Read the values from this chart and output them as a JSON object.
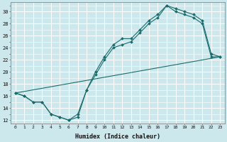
{
  "xlabel": "Humidex (Indice chaleur)",
  "ylabel": "",
  "bg_color": "#cce8ec",
  "grid_color": "#ffffff",
  "line_color": "#1a6b6b",
  "xlim": [
    -0.5,
    23.5
  ],
  "ylim": [
    11.5,
    31.5
  ],
  "xticks": [
    0,
    1,
    2,
    3,
    4,
    5,
    6,
    7,
    8,
    9,
    10,
    11,
    12,
    13,
    14,
    15,
    16,
    17,
    18,
    19,
    20,
    21,
    22,
    23
  ],
  "yticks": [
    12,
    14,
    16,
    18,
    20,
    22,
    24,
    26,
    28,
    30
  ],
  "line1_x": [
    0,
    1,
    2,
    3,
    4,
    5,
    6,
    7,
    8,
    9,
    10,
    11,
    12,
    13,
    14,
    15,
    16,
    17,
    18,
    19,
    20,
    21,
    22,
    23
  ],
  "line1_y": [
    16.5,
    16.0,
    15.0,
    15.0,
    13.0,
    12.5,
    12.0,
    12.5,
    17.0,
    19.5,
    22.0,
    24.0,
    24.5,
    25.0,
    26.5,
    28.0,
    29.0,
    31.0,
    30.0,
    29.5,
    29.0,
    28.0,
    22.5,
    22.5
  ],
  "line2_x": [
    0,
    1,
    2,
    3,
    4,
    5,
    6,
    7,
    8,
    9,
    10,
    11,
    12,
    13,
    14,
    15,
    16,
    17,
    18,
    19,
    20,
    21,
    22,
    23
  ],
  "line2_y": [
    16.5,
    16.0,
    15.0,
    15.0,
    13.0,
    12.5,
    12.0,
    13.0,
    17.0,
    20.0,
    22.5,
    24.5,
    25.5,
    25.5,
    27.0,
    28.5,
    29.5,
    31.0,
    30.5,
    30.0,
    29.5,
    28.5,
    23.0,
    22.5
  ],
  "line3_x": [
    0,
    23
  ],
  "line3_y": [
    16.5,
    22.5
  ]
}
